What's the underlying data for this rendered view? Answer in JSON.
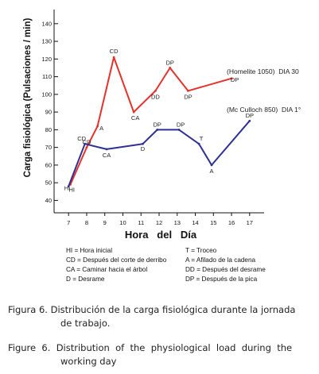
{
  "chart_data": {
    "type": "line",
    "ylabel": "Carga fisiológica (Pulsaciones / min)",
    "xlabel": "Hora   del   Día",
    "x_ticks": [
      7,
      8,
      9,
      10,
      11,
      12,
      13,
      14,
      15,
      16,
      17
    ],
    "y_ticks": [
      40,
      50,
      60,
      70,
      80,
      90,
      100,
      110,
      120,
      130,
      140
    ],
    "xlim": [
      6.2,
      17.8
    ],
    "ylim": [
      33,
      148
    ],
    "grid": false,
    "series": [
      {
        "name": "(Homelite 1050)  DIA 30",
        "color": "#e5322d",
        "points": [
          {
            "x": 7.1,
            "y": 49,
            "label": "HI"
          },
          {
            "x": 8.0,
            "y": 70,
            "label": "CD"
          },
          {
            "x": 8.6,
            "y": 82,
            "label": "A"
          },
          {
            "x": 9.5,
            "y": 121,
            "label": "CD"
          },
          {
            "x": 10.6,
            "y": 90,
            "label": "CA"
          },
          {
            "x": 11.8,
            "y": 102,
            "label": "DD"
          },
          {
            "x": 12.6,
            "y": 115,
            "label": "DP"
          },
          {
            "x": 13.6,
            "y": 102,
            "label": "DP"
          },
          {
            "x": 16.0,
            "y": 109,
            "label": "DP"
          }
        ]
      },
      {
        "name": "(Mc Culloch 850)  DIA 1°",
        "color": "#2e3192",
        "points": [
          {
            "x": 7.0,
            "y": 48,
            "label": "HI"
          },
          {
            "x": 7.9,
            "y": 72,
            "label": "CD"
          },
          {
            "x": 9.1,
            "y": 69,
            "label": "CA"
          },
          {
            "x": 11.1,
            "y": 72,
            "label": "D"
          },
          {
            "x": 11.9,
            "y": 80,
            "label": "DP"
          },
          {
            "x": 13.1,
            "y": 80,
            "label": "DP"
          },
          {
            "x": 14.2,
            "y": 72,
            "label": "T"
          },
          {
            "x": 14.9,
            "y": 60,
            "label": "A"
          },
          {
            "x": 17.0,
            "y": 85,
            "label": "DP"
          }
        ]
      }
    ]
  },
  "legend": [
    [
      "HI = Hora inicial",
      "T = Troceo"
    ],
    [
      "CD = Después del corte de derribo",
      "A = Afilado de la cadena"
    ],
    [
      "CA = Caminar hacia el árbol",
      "DD = Después del desrame"
    ],
    [
      "D = Desrame",
      "DP = Después de la pica"
    ]
  ],
  "caption_es": [
    "Figura 6. Distribución de la carga fisiológica durante la jornada",
    "de trabajo."
  ],
  "caption_en": [
    "Figure  6.  Distribution  of  the  physiological  load  during  the",
    "working day"
  ]
}
